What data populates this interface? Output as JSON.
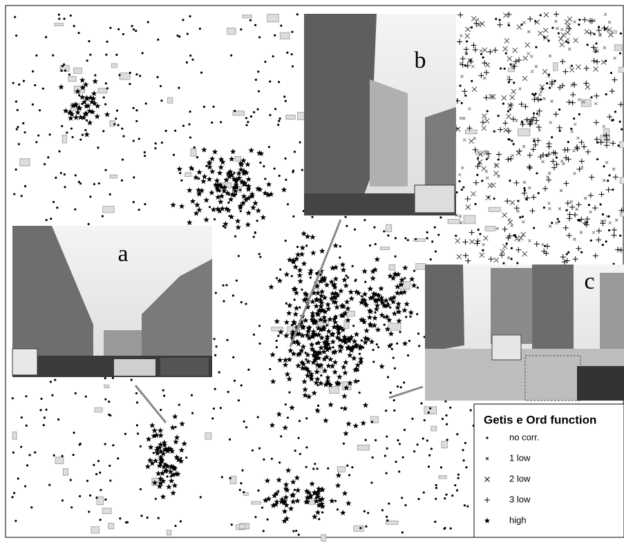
{
  "photos": [
    {
      "label": "a"
    },
    {
      "label": "b"
    },
    {
      "label": "c"
    }
  ],
  "legend": {
    "title": "Getis e Ord function",
    "items": [
      {
        "label": "no corr."
      },
      {
        "label": "1 low"
      },
      {
        "label": "2 low"
      },
      {
        "label": "3 low"
      },
      {
        "label": "high"
      }
    ]
  }
}
